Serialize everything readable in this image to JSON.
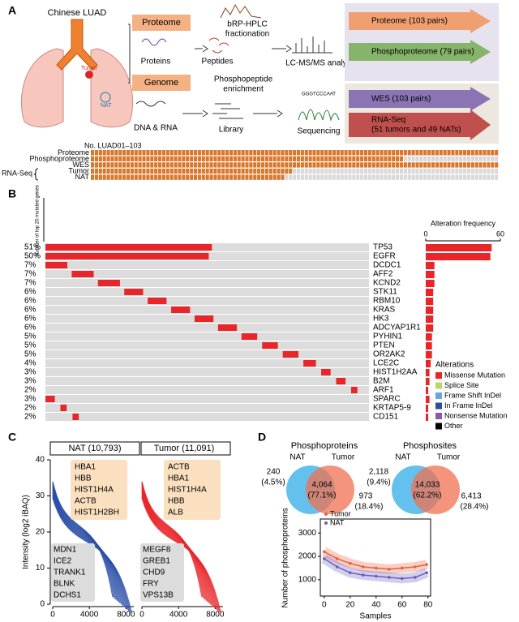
{
  "panel_a": {
    "label": "A",
    "title": "Chinese LUAD",
    "tumor": "Tumor",
    "nat": "NAT",
    "proteome": "Proteome",
    "genome": "Genome",
    "proteins": "Proteins",
    "peptides": "Peptides",
    "fractionation": [
      "bRP-HPLC",
      "fractionation"
    ],
    "enrichment": [
      "Phosphopeptide",
      "enrichment"
    ],
    "lcms": "LC-MS/MS analysis",
    "dna_rna": "DNA & RNA",
    "library": "Library",
    "sequence": "GGGTCCCAAT",
    "sequencing": "Sequencing",
    "outputs": [
      {
        "text": [
          "Proteome (103 pairs)"
        ],
        "color": "#f0a070"
      },
      {
        "text": [
          "Phosphoproteome (79 pairs)"
        ],
        "color": "#86b46a"
      },
      {
        "text": [
          "WES (103 pairs)"
        ],
        "color": "#8a74b4"
      },
      {
        "text": [
          "RNA-Seq",
          "(51 tumors and 49 NATs)"
        ],
        "color": "#c0504d"
      }
    ],
    "samples": {
      "header": "No. LUAD01–103",
      "group": "RNA-Seq",
      "present_color": "#d9782d",
      "absent_color": "#d9d9d9",
      "rows": [
        {
          "name": "Proteome",
          "count": 103
        },
        {
          "name": "Phosphoproteome",
          "count": 79
        },
        {
          "name": "WES",
          "count": 103
        },
        {
          "name": "Tumor",
          "count": 51
        },
        {
          "name": "NAT",
          "count": 49
        }
      ]
    }
  },
  "panel_b": {
    "label": "B",
    "y_axis_label": "Number of top 20 mutated genes",
    "freq_axis_label": "Alteration frequency",
    "freq_xlim": [
      0,
      60
    ],
    "freq_xticks": [
      0,
      60
    ],
    "genes": [
      {
        "name": "TP53",
        "freq_label": "51%",
        "alterations": 53
      },
      {
        "name": "EGFR",
        "freq_label": "50%",
        "alterations": 52
      },
      {
        "name": "DCDC1",
        "freq_label": "7%",
        "alterations": 7
      },
      {
        "name": "AFF2",
        "freq_label": "7%",
        "alterations": 7
      },
      {
        "name": "KCND2",
        "freq_label": "7%",
        "alterations": 7
      },
      {
        "name": "STK11",
        "freq_label": "6%",
        "alterations": 6
      },
      {
        "name": "RBM10",
        "freq_label": "6%",
        "alterations": 6
      },
      {
        "name": "KRAS",
        "freq_label": "6%",
        "alterations": 6
      },
      {
        "name": "HK3",
        "freq_label": "6%",
        "alterations": 6
      },
      {
        "name": "ADCYAP1R1",
        "freq_label": "6%",
        "alterations": 6
      },
      {
        "name": "PYHIN1",
        "freq_label": "5%",
        "alterations": 5
      },
      {
        "name": "PTEN",
        "freq_label": "5%",
        "alterations": 5
      },
      {
        "name": "OR2AK2",
        "freq_label": "5%",
        "alterations": 5
      },
      {
        "name": "LCE2C",
        "freq_label": "4%",
        "alterations": 4
      },
      {
        "name": "HIST1H2AA",
        "freq_label": "3%",
        "alterations": 3
      },
      {
        "name": "B2M",
        "freq_label": "3%",
        "alterations": 3
      },
      {
        "name": "ARF1",
        "freq_label": "2%",
        "alterations": 2
      },
      {
        "name": "SPARC",
        "freq_label": "3%",
        "alterations": 3
      },
      {
        "name": "KRTAP5-9",
        "freq_label": "2%",
        "alterations": 2
      },
      {
        "name": "CD151",
        "freq_label": "2%",
        "alterations": 2
      }
    ],
    "legend_title": "Alterations",
    "alteration_types": [
      {
        "name": "Missense Mutation",
        "color": "#e8262a"
      },
      {
        "name": "Splice Site",
        "color": "#b8d86a"
      },
      {
        "name": "Frame Shift InDel",
        "color": "#6aa6dc"
      },
      {
        "name": "In Frame InDel",
        "color": "#2a4f9c"
      },
      {
        "name": "Nonsense Mutation",
        "color": "#8e5aa8"
      },
      {
        "name": "Other",
        "color": "#000000"
      }
    ]
  },
  "panel_c": {
    "label": "C",
    "y_axis_label": "Intensity (log2 iBAQ)",
    "ylim": [
      0,
      40
    ],
    "yticks": [
      0,
      10,
      20,
      30,
      40
    ],
    "xlim": [
      0,
      9300
    ],
    "xticks": [
      0,
      4000,
      8000
    ],
    "subsets": [
      {
        "title": "NAT (10,793)",
        "color": "#2a4fa8",
        "high": [
          "HBA1",
          "HBB",
          "HIST1H4A",
          "ACTB",
          "HIST1H2BH"
        ],
        "low": [
          "MDN1",
          "ICE2",
          "TRANK1",
          "BLNK",
          "DCHS1"
        ]
      },
      {
        "title": "Tumor (11,091)",
        "color": "#e8262a",
        "high": [
          "ACTB",
          "HBA1",
          "HIST1H4A",
          "HBB",
          "ALB"
        ],
        "low": [
          "MEGF8",
          "GREB1",
          "CHD9",
          "FRY",
          "VPS13B"
        ]
      }
    ]
  },
  "panel_d": {
    "label": "D",
    "venns": [
      {
        "title": "Phosphoproteins",
        "left": "NAT",
        "right": "Tumor",
        "left_only": [
          "240",
          "(4.5%)"
        ],
        "both": [
          "4,064",
          "(77.1%)"
        ],
        "right_only": [
          "973",
          "(18.4%)"
        ]
      },
      {
        "title": "Phosphosites",
        "left": "NAT",
        "right": "Tumor",
        "left_only": [
          "2,118",
          "(9.4%)"
        ],
        "both": [
          "14,033",
          "(62.2%)"
        ],
        "right_only": [
          "6,413",
          "(28.4%)"
        ]
      }
    ],
    "scatter": {
      "y_axis_label": "Number of phosphoproteins",
      "x_axis_label": "Samples",
      "xlim": [
        -3,
        82
      ],
      "ylim": [
        300,
        3600
      ],
      "xticks": [
        0,
        20,
        40,
        60,
        80
      ],
      "yticks": [
        1000,
        2000,
        3000
      ],
      "x": [
        0,
        10,
        20,
        30,
        40,
        50,
        60,
        70,
        79
      ],
      "series": [
        {
          "name": "Tumor",
          "color": "#e8603c",
          "values": [
            2200,
            1900,
            1700,
            1550,
            1500,
            1450,
            1500,
            1550,
            1650
          ]
        },
        {
          "name": "NAT",
          "color": "#6a5fc0",
          "values": [
            1900,
            1550,
            1300,
            1200,
            1150,
            1100,
            1050,
            1100,
            1300
          ]
        }
      ]
    }
  }
}
